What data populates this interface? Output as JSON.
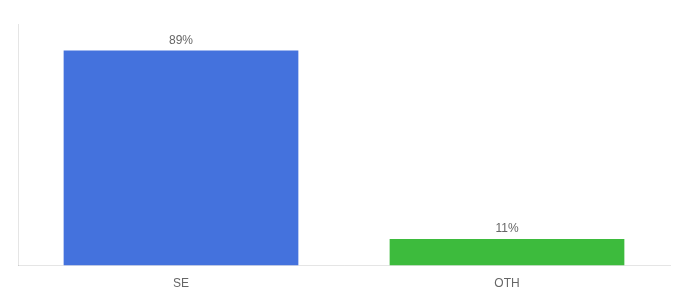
{
  "chart_data": {
    "type": "bar",
    "categories": [
      "SE",
      "OTH"
    ],
    "values": [
      89,
      11
    ],
    "colors": [
      "#4472DD",
      "#3DBB3D"
    ],
    "data_labels": true,
    "value_labels": [
      "89%",
      "11%"
    ],
    "ylim": [
      0,
      100
    ],
    "tick_labels": "x",
    "grid": false
  }
}
